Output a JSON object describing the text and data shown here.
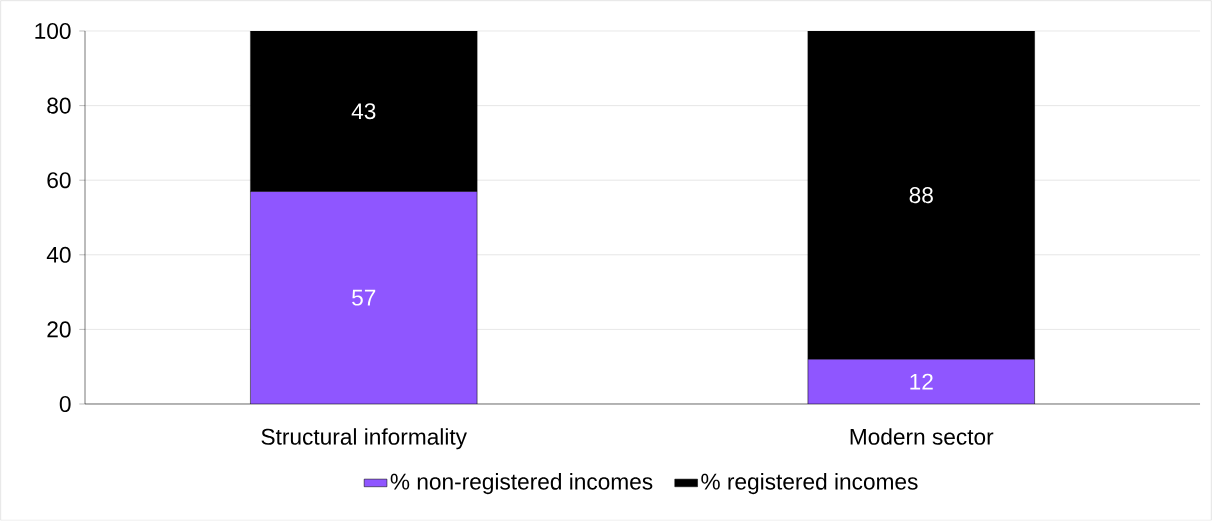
{
  "chart_data": {
    "type": "bar",
    "stacked": true,
    "categories": [
      "Structural informality",
      "Modern sector"
    ],
    "series": [
      {
        "name": "% non-registered incomes",
        "color": "#8f56ff",
        "values": [
          57,
          12
        ]
      },
      {
        "name": "% registered incomes",
        "color": "#000000",
        "values": [
          43,
          88
        ]
      }
    ],
    "ylim": [
      0,
      100
    ],
    "yticks": [
      0,
      20,
      40,
      60,
      80,
      100
    ],
    "grid": "y",
    "legend": "bottom",
    "data_labels": true
  }
}
